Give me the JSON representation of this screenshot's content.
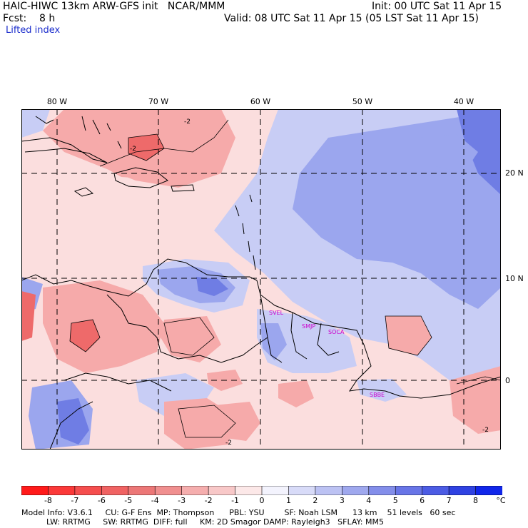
{
  "header": {
    "line1_left": "HAIC-HIWC 13km ARW-GFS init   NCAR/MMM",
    "line1_right": "Init: 00 UTC Sat 11 Apr 15",
    "line2_left": "Fcst:    8 h",
    "line2_right": "Valid: 08 UTC Sat 11 Apr 15 (05 LST Sat 11 Apr 15)",
    "field_name": "Lifted index"
  },
  "map": {
    "lon_labels": [
      "80 W",
      "70 W",
      "60 W",
      "50 W",
      "40 W"
    ],
    "lat_labels": [
      "20 N",
      "10 N",
      "0"
    ],
    "stations": [
      "SVEL",
      "SMJP",
      "SOCA",
      "SBBE"
    ],
    "contour_labels": [
      "-2",
      "-2",
      "-2",
      "-2"
    ],
    "colors": {
      "ocean_neutral": "#fbdede",
      "unstable_light": "#f6aaaa",
      "unstable_dark": "#ee6a6a",
      "stable_light": "#c8cdf5",
      "stable_mid": "#9ba6ee",
      "stable_dark": "#6f7de4",
      "station_label": "#cc00cc",
      "grid": "#000000"
    }
  },
  "colorbar": {
    "labels": [
      "-8",
      "-7",
      "-6",
      "-5",
      "-4",
      "-3",
      "-2",
      "-1",
      "0",
      "1",
      "2",
      "3",
      "4",
      "5",
      "6",
      "7",
      "8"
    ],
    "unit": "°C",
    "colors": [
      "#ff1a1a",
      "#fb3939",
      "#f54e4e",
      "#f06363",
      "#ec7777",
      "#f08f8f",
      "#f5aeae",
      "#f8c8c8",
      "#fce8e8",
      "#f3f3fd",
      "#d8dbf8",
      "#bcc2f3",
      "#9fa8ee",
      "#838eea",
      "#6875e7",
      "#4c5ce4",
      "#2f42e2",
      "#1026ea"
    ]
  },
  "info": {
    "line1": "Model Info: V3.6.1     CU: G-F Ens  MP: Thompson      PBL: YSU        SF: Noah LSM      13 km    51 levels   60 sec",
    "line2": "          LW: RRTMG     SW: RRTMG  DIFF: full     KM: 2D Smagor DAMP: Rayleigh3   SFLAY: MM5"
  }
}
